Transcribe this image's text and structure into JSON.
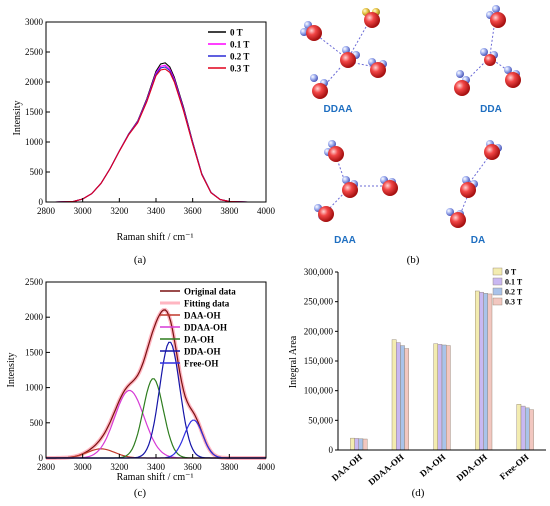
{
  "panel_labels": {
    "a": "(a)",
    "b": "(b)",
    "c": "(c)",
    "d": "(d)"
  },
  "molecule_labels": {
    "ddaa": "DDAA",
    "dda": "DDA",
    "daa": "DAA",
    "da": "DA"
  },
  "chart_data": [
    {
      "id": "a",
      "type": "line",
      "xlabel": "Raman shift / cm⁻¹",
      "ylabel": "Intensity",
      "xlim": [
        2800,
        4000
      ],
      "ylim": [
        0,
        3000
      ],
      "xticks": [
        2800,
        3000,
        3200,
        3400,
        3600,
        3800,
        4000
      ],
      "yticks": [
        0,
        500,
        1000,
        1500,
        2000,
        2500,
        3000
      ],
      "legend_position": "top-right",
      "x": [
        2850,
        2950,
        3000,
        3050,
        3100,
        3150,
        3200,
        3250,
        3300,
        3350,
        3400,
        3425,
        3450,
        3475,
        3500,
        3550,
        3600,
        3650,
        3700,
        3750,
        3800,
        3900,
        4000
      ],
      "series": [
        {
          "name": "0 T",
          "color": "#000000",
          "values": [
            0,
            10,
            50,
            140,
            310,
            560,
            850,
            1130,
            1350,
            1720,
            2180,
            2300,
            2320,
            2250,
            2080,
            1580,
            1000,
            470,
            160,
            40,
            10,
            0,
            0
          ]
        },
        {
          "name": "0.1 T",
          "color": "#ff00ff",
          "values": [
            0,
            10,
            50,
            140,
            310,
            560,
            850,
            1125,
            1340,
            1700,
            2150,
            2260,
            2280,
            2215,
            2050,
            1555,
            985,
            465,
            158,
            40,
            10,
            0,
            0
          ]
        },
        {
          "name": "0.2 T",
          "color": "#2b2bd6",
          "values": [
            0,
            10,
            50,
            140,
            310,
            560,
            848,
            1120,
            1330,
            1685,
            2125,
            2235,
            2250,
            2190,
            2025,
            1540,
            975,
            460,
            156,
            40,
            10,
            0,
            0
          ]
        },
        {
          "name": "0.3 T",
          "color": "#e0001b",
          "values": [
            0,
            10,
            50,
            140,
            310,
            558,
            845,
            1115,
            1320,
            1670,
            2105,
            2200,
            2215,
            2160,
            2000,
            1520,
            965,
            455,
            154,
            40,
            10,
            0,
            0
          ]
        }
      ]
    },
    {
      "id": "c",
      "type": "line",
      "xlabel": "Raman shift / cm⁻¹",
      "ylabel": "Intensity",
      "xlim": [
        2800,
        4000
      ],
      "ylim": [
        0,
        2500
      ],
      "xticks": [
        2800,
        3000,
        3200,
        3400,
        3600,
        3800,
        4000
      ],
      "yticks": [
        0,
        500,
        1000,
        1500,
        2000,
        2500
      ],
      "legend_position": "top-right",
      "original": {
        "name": "Original data",
        "color": "#7a1010"
      },
      "fitting": {
        "name": "Fitting data",
        "color": "#ffb6c1"
      },
      "components": [
        {
          "name": "DAA-OH",
          "color": "#c0392b",
          "center": 3100,
          "height": 130,
          "width": 75
        },
        {
          "name": "DDAA-OH",
          "color": "#d63ad6",
          "center": 3255,
          "height": 960,
          "width": 80
        },
        {
          "name": "DA-OH",
          "color": "#2e7d1f",
          "center": 3385,
          "height": 1130,
          "width": 55
        },
        {
          "name": "DDA-OH",
          "color": "#1515a8",
          "center": 3475,
          "height": 1650,
          "width": 55
        },
        {
          "name": "Free-OH",
          "color": "#3030e0",
          "center": 3605,
          "height": 540,
          "width": 50
        }
      ]
    },
    {
      "id": "d",
      "type": "bar",
      "ylabel": "Integral Area",
      "ylim": [
        0,
        300000
      ],
      "yticks": [
        "0",
        "50,000",
        "100,000",
        "150,000",
        "200,000",
        "250,000",
        "300,000"
      ],
      "yticks_values": [
        0,
        50000,
        100000,
        150000,
        200000,
        250000,
        300000
      ],
      "legend_position": "top-right",
      "categories": [
        "DAA-OH",
        "DDAA-OH",
        "DA-OH",
        "DDA-OH",
        "Free-OH"
      ],
      "series": [
        {
          "name": "0 T",
          "color": "#f3ecb0",
          "values": [
            20000,
            186000,
            179000,
            268000,
            77000
          ]
        },
        {
          "name": "0.1 T",
          "color": "#c9b8f2",
          "values": [
            19500,
            181000,
            178000,
            266000,
            74000
          ]
        },
        {
          "name": "0.2 T",
          "color": "#a9c3ea",
          "values": [
            19000,
            176000,
            177000,
            264000,
            71000
          ]
        },
        {
          "name": "0.3 T",
          "color": "#f2c7c0",
          "values": [
            18500,
            171000,
            176000,
            263000,
            68000
          ]
        }
      ]
    }
  ]
}
